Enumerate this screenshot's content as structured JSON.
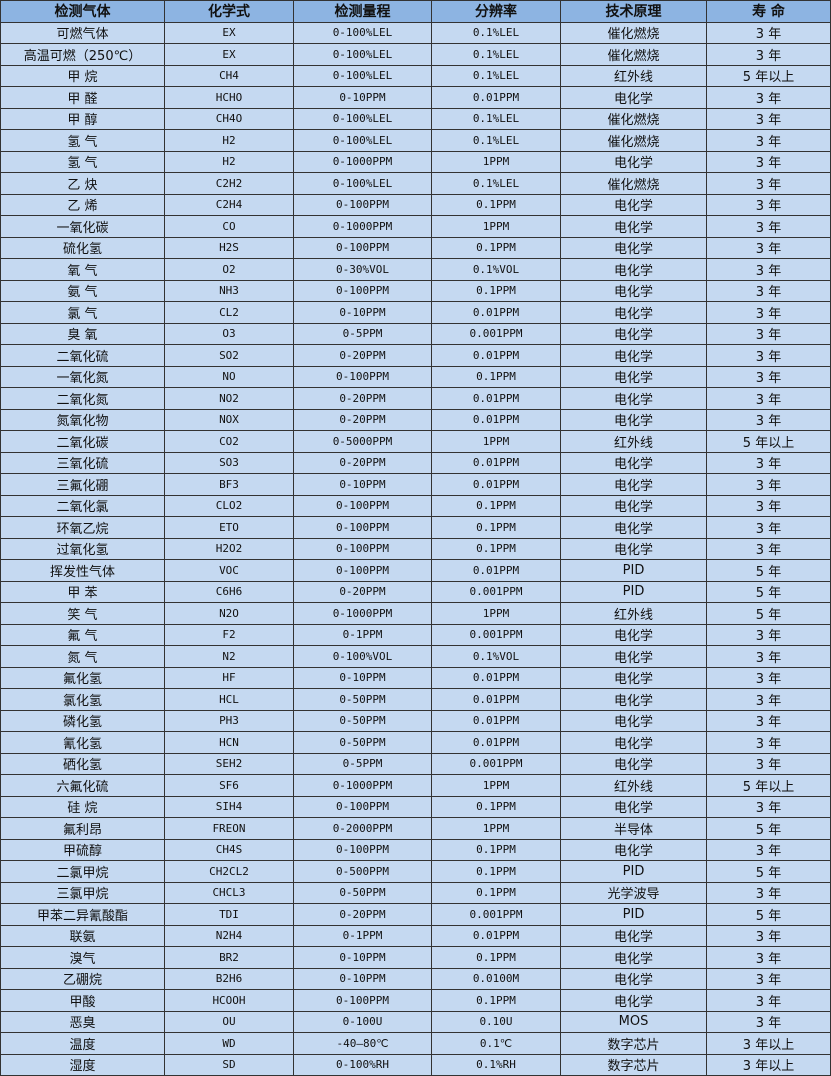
{
  "table": {
    "headers": [
      "检测气体",
      "化学式",
      "检测量程",
      "分辨率",
      "技术原理",
      "寿 命"
    ],
    "rows": [
      [
        "可燃气体",
        "EX",
        "0-100%LEL",
        "0.1%LEL",
        "催化燃烧",
        "3 年"
      ],
      [
        "高温可燃（250℃）",
        "EX",
        "0-100%LEL",
        "0.1%LEL",
        "催化燃烧",
        "3 年"
      ],
      [
        "甲 烷",
        "CH4",
        "0-100%LEL",
        "0.1%LEL",
        "红外线",
        "5 年以上"
      ],
      [
        "甲 醛",
        "HCHO",
        "0-10PPM",
        "0.01PPM",
        "电化学",
        "3 年"
      ],
      [
        "甲 醇",
        "CH4O",
        "0-100%LEL",
        "0.1%LEL",
        "催化燃烧",
        "3 年"
      ],
      [
        "氢 气",
        "H2",
        "0-100%LEL",
        "0.1%LEL",
        "催化燃烧",
        "3 年"
      ],
      [
        "氢 气",
        "H2",
        "0-1000PPM",
        "1PPM",
        "电化学",
        "3 年"
      ],
      [
        "乙 炔",
        "C2H2",
        "0-100%LEL",
        "0.1%LEL",
        "催化燃烧",
        "3 年"
      ],
      [
        "乙 烯",
        "C2H4",
        "0-100PPM",
        "0.1PPM",
        "电化学",
        "3 年"
      ],
      [
        "一氧化碳",
        "CO",
        "0-1000PPM",
        "1PPM",
        "电化学",
        "3 年"
      ],
      [
        "硫化氢",
        "H2S",
        "0-100PPM",
        "0.1PPM",
        "电化学",
        "3 年"
      ],
      [
        "氧 气",
        "O2",
        "0-30%VOL",
        "0.1%VOL",
        "电化学",
        "3 年"
      ],
      [
        "氨 气",
        "NH3",
        "0-100PPM",
        "0.1PPM",
        "电化学",
        "3 年"
      ],
      [
        "氯 气",
        "CL2",
        "0-10PPM",
        "0.01PPM",
        "电化学",
        "3 年"
      ],
      [
        "臭 氧",
        "O3",
        "0-5PPM",
        "0.001PPM",
        "电化学",
        "3 年"
      ],
      [
        "二氧化硫",
        "SO2",
        "0-20PPM",
        "0.01PPM",
        "电化学",
        "3 年"
      ],
      [
        "一氧化氮",
        "NO",
        "0-100PPM",
        "0.1PPM",
        "电化学",
        "3 年"
      ],
      [
        "二氧化氮",
        "NO2",
        "0-20PPM",
        "0.01PPM",
        "电化学",
        "3 年"
      ],
      [
        "氮氧化物",
        "NOX",
        "0-20PPM",
        "0.01PPM",
        "电化学",
        "3 年"
      ],
      [
        "二氧化碳",
        "CO2",
        "0-5000PPM",
        "1PPM",
        "红外线",
        "5 年以上"
      ],
      [
        "三氧化硫",
        "SO3",
        "0-20PPM",
        "0.01PPM",
        "电化学",
        "3 年"
      ],
      [
        "三氟化硼",
        "BF3",
        "0-10PPM",
        "0.01PPM",
        "电化学",
        "3 年"
      ],
      [
        "二氧化氯",
        "CLO2",
        "0-100PPM",
        "0.1PPM",
        "电化学",
        "3 年"
      ],
      [
        "环氧乙烷",
        "ETO",
        "0-100PPM",
        "0.1PPM",
        "电化学",
        "3 年"
      ],
      [
        "过氧化氢",
        "H2O2",
        "0-100PPM",
        "0.1PPM",
        "电化学",
        "3 年"
      ],
      [
        "挥发性气体",
        "VOC",
        "0-100PPM",
        "0.01PPM",
        "PID",
        "5 年"
      ],
      [
        "甲 苯",
        "C6H6",
        "0-20PPM",
        "0.001PPM",
        "PID",
        "5 年"
      ],
      [
        "笑 气",
        "N2O",
        "0-1000PPM",
        "1PPM",
        "红外线",
        "5 年"
      ],
      [
        "氟 气",
        "F2",
        "0-1PPM",
        "0.001PPM",
        "电化学",
        "3 年"
      ],
      [
        "氮 气",
        "N2",
        "0-100%VOL",
        "0.1%VOL",
        "电化学",
        "3 年"
      ],
      [
        "氟化氢",
        "HF",
        "0-10PPM",
        "0.01PPM",
        "电化学",
        "3 年"
      ],
      [
        "氯化氢",
        "HCL",
        "0-50PPM",
        "0.01PPM",
        "电化学",
        "3 年"
      ],
      [
        "磷化氢",
        "PH3",
        "0-50PPM",
        "0.01PPM",
        "电化学",
        "3 年"
      ],
      [
        "氰化氢",
        "HCN",
        "0-50PPM",
        "0.01PPM",
        "电化学",
        "3 年"
      ],
      [
        "硒化氢",
        "SEH2",
        "0-5PPM",
        "0.001PPM",
        "电化学",
        "3 年"
      ],
      [
        "六氟化硫",
        "SF6",
        "0-1000PPM",
        "1PPM",
        "红外线",
        "5 年以上"
      ],
      [
        "硅 烷",
        "SIH4",
        "0-100PPM",
        "0.1PPM",
        "电化学",
        "3 年"
      ],
      [
        "氟利昂",
        "FREON",
        "0-2000PPM",
        "1PPM",
        "半导体",
        "5 年"
      ],
      [
        "甲硫醇",
        "CH4S",
        "0-100PPM",
        "0.1PPM",
        "电化学",
        "3 年"
      ],
      [
        "二氯甲烷",
        "CH2CL2",
        "0-500PPM",
        "0.1PPM",
        "PID",
        "5 年"
      ],
      [
        "三氯甲烷",
        "CHCL3",
        "0-50PPM",
        "0.1PPM",
        "光学波导",
        "3 年"
      ],
      [
        "甲苯二异氰酸酯",
        "TDI",
        "0-20PPM",
        "0.001PPM",
        "PID",
        "5 年"
      ],
      [
        "联氨",
        "N2H4",
        "0-1PPM",
        "0.01PPM",
        "电化学",
        "3 年"
      ],
      [
        "溴气",
        "BR2",
        "0-10PPM",
        "0.1PPM",
        "电化学",
        "3 年"
      ],
      [
        "乙硼烷",
        "B2H6",
        "0-10PPM",
        "0.0100M",
        "电化学",
        "3 年"
      ],
      [
        "甲酸",
        "HCOOH",
        "0-100PPM",
        "0.1PPM",
        "电化学",
        "3 年"
      ],
      [
        "恶臭",
        "OU",
        "0-100U",
        "0.10U",
        "MOS",
        "3 年"
      ],
      [
        "温度",
        "WD",
        "-40—80℃",
        "0.1℃",
        "数字芯片",
        "3 年以上"
      ],
      [
        "湿度",
        "SD",
        "0-100%RH",
        "0.1%RH",
        "数字芯片",
        "3 年以上"
      ]
    ]
  },
  "colors": {
    "header_bg": "#8db4e2",
    "row_bg": "#c5d9f1"
  }
}
